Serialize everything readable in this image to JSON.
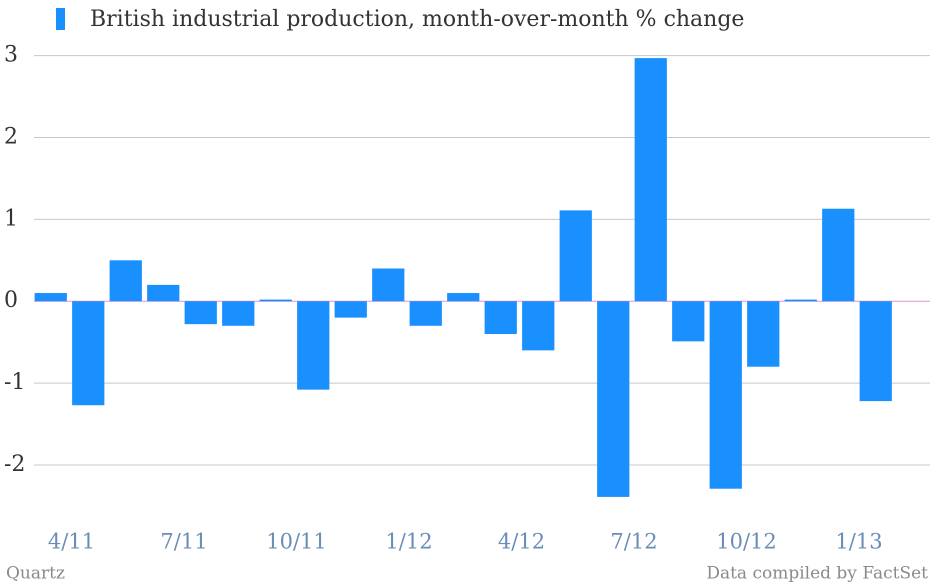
{
  "chart_data": {
    "type": "bar",
    "categories": [
      null,
      "4/11",
      null,
      null,
      "7/11",
      null,
      null,
      "10/11",
      null,
      null,
      "1/12",
      null,
      null,
      "4/12",
      null,
      null,
      "7/12",
      null,
      null,
      "10/12",
      null,
      null,
      "1/13"
    ],
    "series": [
      {
        "name": "British industrial production, month-over-month % change",
        "color": "#1a90ff",
        "values": [
          0.1,
          -1.27,
          0.5,
          0.2,
          -0.28,
          -0.3,
          0.02,
          -1.08,
          -0.2,
          0.4,
          -0.3,
          0.1,
          -0.4,
          -0.6,
          1.11,
          -2.39,
          2.97,
          -0.49,
          -2.29,
          -0.8,
          0.02,
          1.13,
          -1.22
        ]
      }
    ],
    "ylim": [
      -2.55,
      3.13
    ],
    "yticks": [
      -2,
      -1,
      0,
      1,
      2,
      3
    ],
    "grid": true,
    "credit": "Quartz",
    "source": "Data compiled by FactSet"
  }
}
